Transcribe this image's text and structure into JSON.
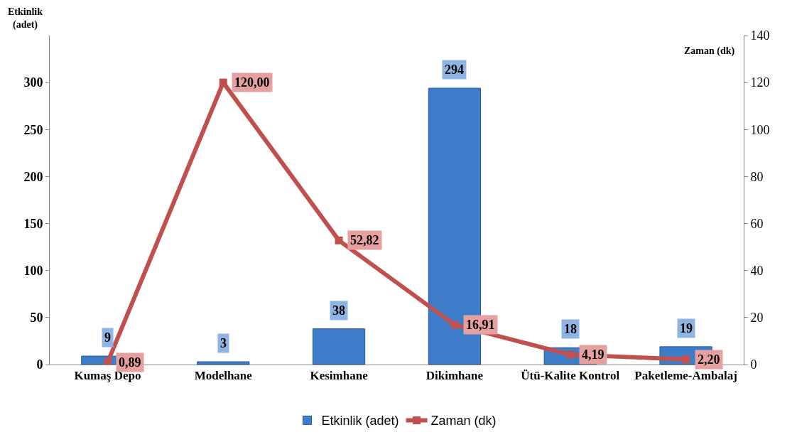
{
  "chart_data": {
    "type": "bar",
    "ylabel": "Etkinlik\n(adet)",
    "y2label": "Zaman (dk)",
    "categories": [
      "Kumaş Depo",
      "Modelhane",
      "Kesimhane",
      "Dikimhane",
      "Ütü-Kalite Kontrol",
      "Paketleme-Ambalaj"
    ],
    "series": [
      {
        "name": "Etkinlik (adet)",
        "color": "#3d7cc9",
        "values": [
          9,
          3,
          38,
          294,
          18,
          19
        ],
        "value_labels": [
          "9",
          "3",
          "38",
          "294",
          "18",
          "19"
        ]
      },
      {
        "name": "Zaman (dk)",
        "type": "line",
        "axis": "y2",
        "color": "#c0504d",
        "marker": "square",
        "values": [
          0.89,
          120.0,
          52.82,
          16.91,
          4.19,
          2.2
        ],
        "value_labels": [
          "0,89",
          "120,00",
          "52,82",
          "16,91",
          "4,19",
          "2,20"
        ]
      }
    ],
    "ylim": [
      0,
      350
    ],
    "yticks": [
      0,
      50,
      100,
      150,
      200,
      250,
      300
    ],
    "y2lim": [
      0,
      140
    ],
    "y2ticks": [
      0,
      20,
      40,
      60,
      80,
      100,
      120,
      140
    ],
    "grid": false,
    "legend": "bottom"
  }
}
